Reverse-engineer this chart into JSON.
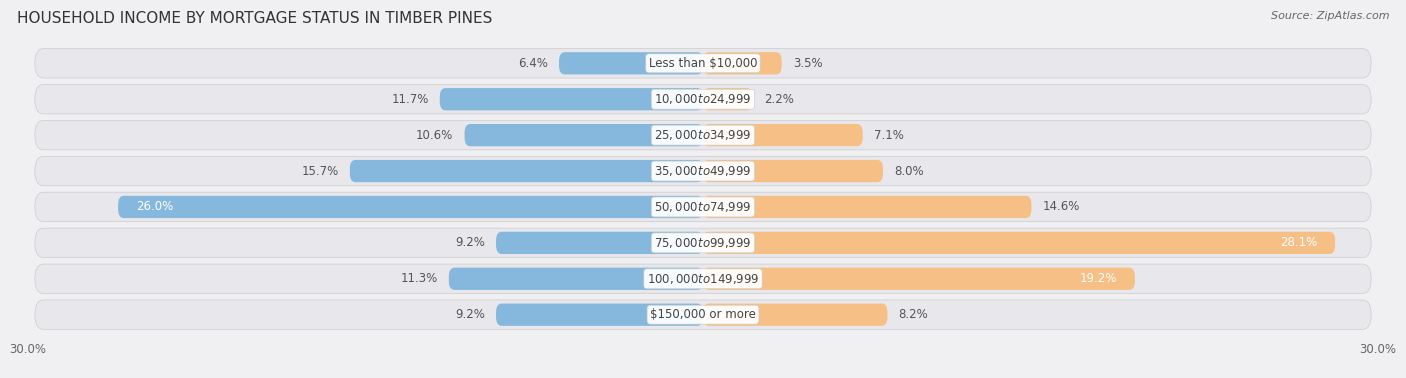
{
  "title": "HOUSEHOLD INCOME BY MORTGAGE STATUS IN TIMBER PINES",
  "source": "Source: ZipAtlas.com",
  "categories": [
    "Less than $10,000",
    "$10,000 to $24,999",
    "$25,000 to $34,999",
    "$35,000 to $49,999",
    "$50,000 to $74,999",
    "$75,000 to $99,999",
    "$100,000 to $149,999",
    "$150,000 or more"
  ],
  "without_mortgage": [
    6.4,
    11.7,
    10.6,
    15.7,
    26.0,
    9.2,
    11.3,
    9.2
  ],
  "with_mortgage": [
    3.5,
    2.2,
    7.1,
    8.0,
    14.6,
    28.1,
    19.2,
    8.2
  ],
  "color_without": "#85b8dc",
  "color_with": "#f5bf85",
  "xlim": 30.0,
  "bg_color": "#f0f0f2",
  "row_bg_light": "#eaeaed",
  "row_bg_dark": "#dcdce0",
  "title_fontsize": 11,
  "label_fontsize": 8.5,
  "pct_fontsize": 8.5,
  "tick_fontsize": 8.5,
  "legend_fontsize": 8.5
}
